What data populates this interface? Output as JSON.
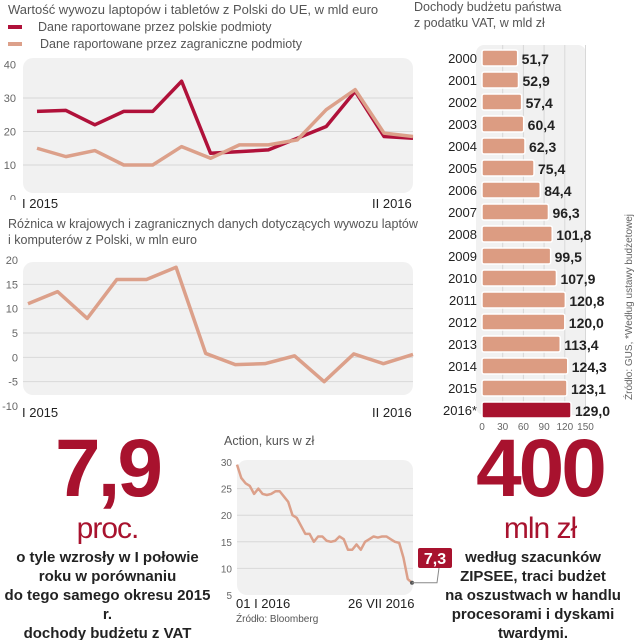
{
  "chart_data": [
    {
      "type": "line",
      "title": "Wartość wywozu laptopów i tabletów z Polski do UE, w mld euro",
      "ylim": [
        0,
        40
      ],
      "yticks": [
        0,
        10,
        20,
        30,
        40
      ],
      "x_start_label": "I 2015",
      "x_end_label": "II 2016",
      "series": [
        {
          "name": "Dane raportowane przez polskie podmioty",
          "color": "#b0113a",
          "values": [
            26,
            26.3,
            22,
            26,
            26,
            35,
            13.5,
            14,
            14.5,
            18,
            21.5,
            32,
            18.5,
            18
          ]
        },
        {
          "name": "Dane raportowane przez zagraniczne podmioty",
          "color": "#dca08a",
          "values": [
            15,
            12.5,
            14.3,
            10,
            10,
            15.5,
            12,
            16,
            16,
            17.5,
            26.5,
            32.5,
            19.5,
            18.5
          ]
        }
      ]
    },
    {
      "type": "line",
      "title": "Różnica w krajowych i zagranicznych danych dotyczących wywozu laptów",
      "title2": "i komputerów z Polski, w mln euro",
      "ylim": [
        -10,
        20
      ],
      "yticks": [
        -10,
        -5,
        0,
        5,
        10,
        15,
        20
      ],
      "x_start_label": "I 2015",
      "x_end_label": "II 2016",
      "series": [
        {
          "name": "Różnica",
          "color": "#dca08a",
          "values": [
            11,
            13.5,
            8,
            16,
            16,
            18.5,
            0.8,
            -1.5,
            -1.3,
            0.3,
            -5,
            0.7,
            -1.3,
            0.6
          ]
        }
      ]
    },
    {
      "type": "bar",
      "orientation": "horizontal",
      "title": "Dochody budżetu państwa",
      "title2": "z podatku VAT, w mld zł",
      "categories": [
        "2000",
        "2001",
        "2002",
        "2003",
        "2004",
        "2005",
        "2006",
        "2007",
        "2008",
        "2009",
        "2010",
        "2011",
        "2012",
        "2013",
        "2014",
        "2015",
        "2016*"
      ],
      "values": [
        51.7,
        52.9,
        57.4,
        60.4,
        62.3,
        75.4,
        84.4,
        96.3,
        101.8,
        99.5,
        107.9,
        120.8,
        120.0,
        113.4,
        124.3,
        123.1,
        129.0
      ],
      "value_labels": [
        "51,7",
        "52,9",
        "57,4",
        "60,4",
        "62,3",
        "75,4",
        "84,4",
        "96,3",
        "101,8",
        "99,5",
        "107,9",
        "120,8",
        "120,0",
        "113,4",
        "124,3",
        "123,1",
        "129,0"
      ],
      "xlim": [
        0,
        150
      ],
      "xticks": [
        0,
        30,
        60,
        90,
        120,
        150
      ],
      "bar_color": "#dc9c82",
      "highlight_color": "#a8122e"
    },
    {
      "type": "line",
      "title": "Action, kurs w zł",
      "ylim": [
        5,
        30
      ],
      "yticks": [
        5,
        10,
        15,
        20,
        25,
        30
      ],
      "x_start_label": "01 I 2016",
      "x_end_label": "26 VII 2016",
      "last_value_label": "7,3",
      "source": "Źródło: Bloomberg",
      "series": [
        {
          "name": "Action",
          "color": "#dca08a",
          "values": [
            29.5,
            27,
            26,
            25.5,
            24,
            25,
            24,
            23.8,
            24,
            24.5,
            24.5,
            23.5,
            22.5,
            20,
            19.5,
            18,
            16.5,
            16.5,
            15,
            16,
            16,
            15.2,
            15,
            15.2,
            16,
            15.5,
            13.5,
            13.5,
            14.5,
            13.5,
            15,
            15.5,
            16,
            15.8,
            16,
            16,
            15.5,
            15,
            14.8,
            12,
            8,
            7.3
          ]
        }
      ]
    }
  ],
  "stat_left": {
    "value": "7,9",
    "unit": "proc.",
    "lines": [
      "o tyle wzrosły w I połowie",
      "roku w porównaniu",
      "do tego samego okresu 2015 r.",
      "dochody budżetu z VAT"
    ]
  },
  "stat_right": {
    "value": "400",
    "unit": "mln zł",
    "lines": [
      "według szacunków",
      "ZIPSEE, traci budżet",
      "na oszustwach w handlu",
      "procesorami i dyskami twardymi."
    ]
  },
  "source_note": "Źródło: GUS, *Według ustawy budżetowej"
}
